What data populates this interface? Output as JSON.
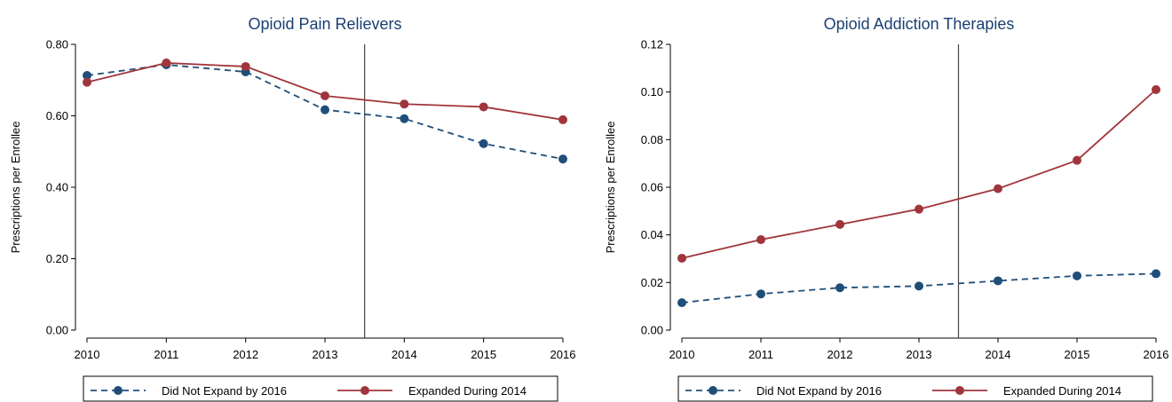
{
  "colors": {
    "not_expand": "#1f4e79",
    "expanded": "#a0353b",
    "title": "#1a3f73"
  },
  "chart_data": [
    {
      "type": "line",
      "title": "Opioid Pain Relievers",
      "ylabel": "Prescriptions per Enrollee",
      "x": [
        2010,
        2011,
        2012,
        2013,
        2014,
        2015,
        2016
      ],
      "x_ticklabels": [
        "2010",
        "2011",
        "2012",
        "2013",
        "2014",
        "2015",
        "2016"
      ],
      "ylim": [
        0,
        0.8
      ],
      "y_ticks": [
        0,
        0.2,
        0.4,
        0.6,
        0.8
      ],
      "y_ticklabels": [
        "0.00",
        "0.20",
        "0.40",
        "0.60",
        "0.80"
      ],
      "reference_line_x": 2013.5,
      "series": [
        {
          "name": "Did Not Expand by 2016",
          "style": "dashed",
          "color": "#1f4e79",
          "values": [
            0.713,
            0.743,
            0.723,
            0.617,
            0.592,
            0.522,
            0.479
          ]
        },
        {
          "name": "Expanded During 2014",
          "style": "solid",
          "color": "#a0353b",
          "values": [
            0.694,
            0.748,
            0.738,
            0.656,
            0.633,
            0.625,
            0.589
          ]
        }
      ]
    },
    {
      "type": "line",
      "title": "Opioid Addiction Therapies",
      "ylabel": "Prescriptions per Enrollee",
      "x": [
        2010,
        2011,
        2012,
        2013,
        2014,
        2015,
        2016
      ],
      "x_ticklabels": [
        "2010",
        "2011",
        "2012",
        "2013",
        "2014",
        "2015",
        "2016"
      ],
      "ylim": [
        0,
        0.12
      ],
      "y_ticks": [
        0,
        0.02,
        0.04,
        0.06,
        0.08,
        0.1,
        0.12
      ],
      "y_ticklabels": [
        "0.00",
        "0.02",
        "0.04",
        "0.06",
        "0.08",
        "0.10",
        "0.12"
      ],
      "reference_line_x": 2013.5,
      "series": [
        {
          "name": "Did Not Expand by 2016",
          "style": "dashed",
          "color": "#1f4e79",
          "values": [
            0.0115,
            0.0152,
            0.0178,
            0.0185,
            0.0207,
            0.0228,
            0.0237
          ]
        },
        {
          "name": "Expanded During 2014",
          "style": "solid",
          "color": "#a0353b",
          "values": [
            0.0302,
            0.038,
            0.0444,
            0.0508,
            0.0594,
            0.0713,
            0.101
          ]
        }
      ]
    }
  ]
}
